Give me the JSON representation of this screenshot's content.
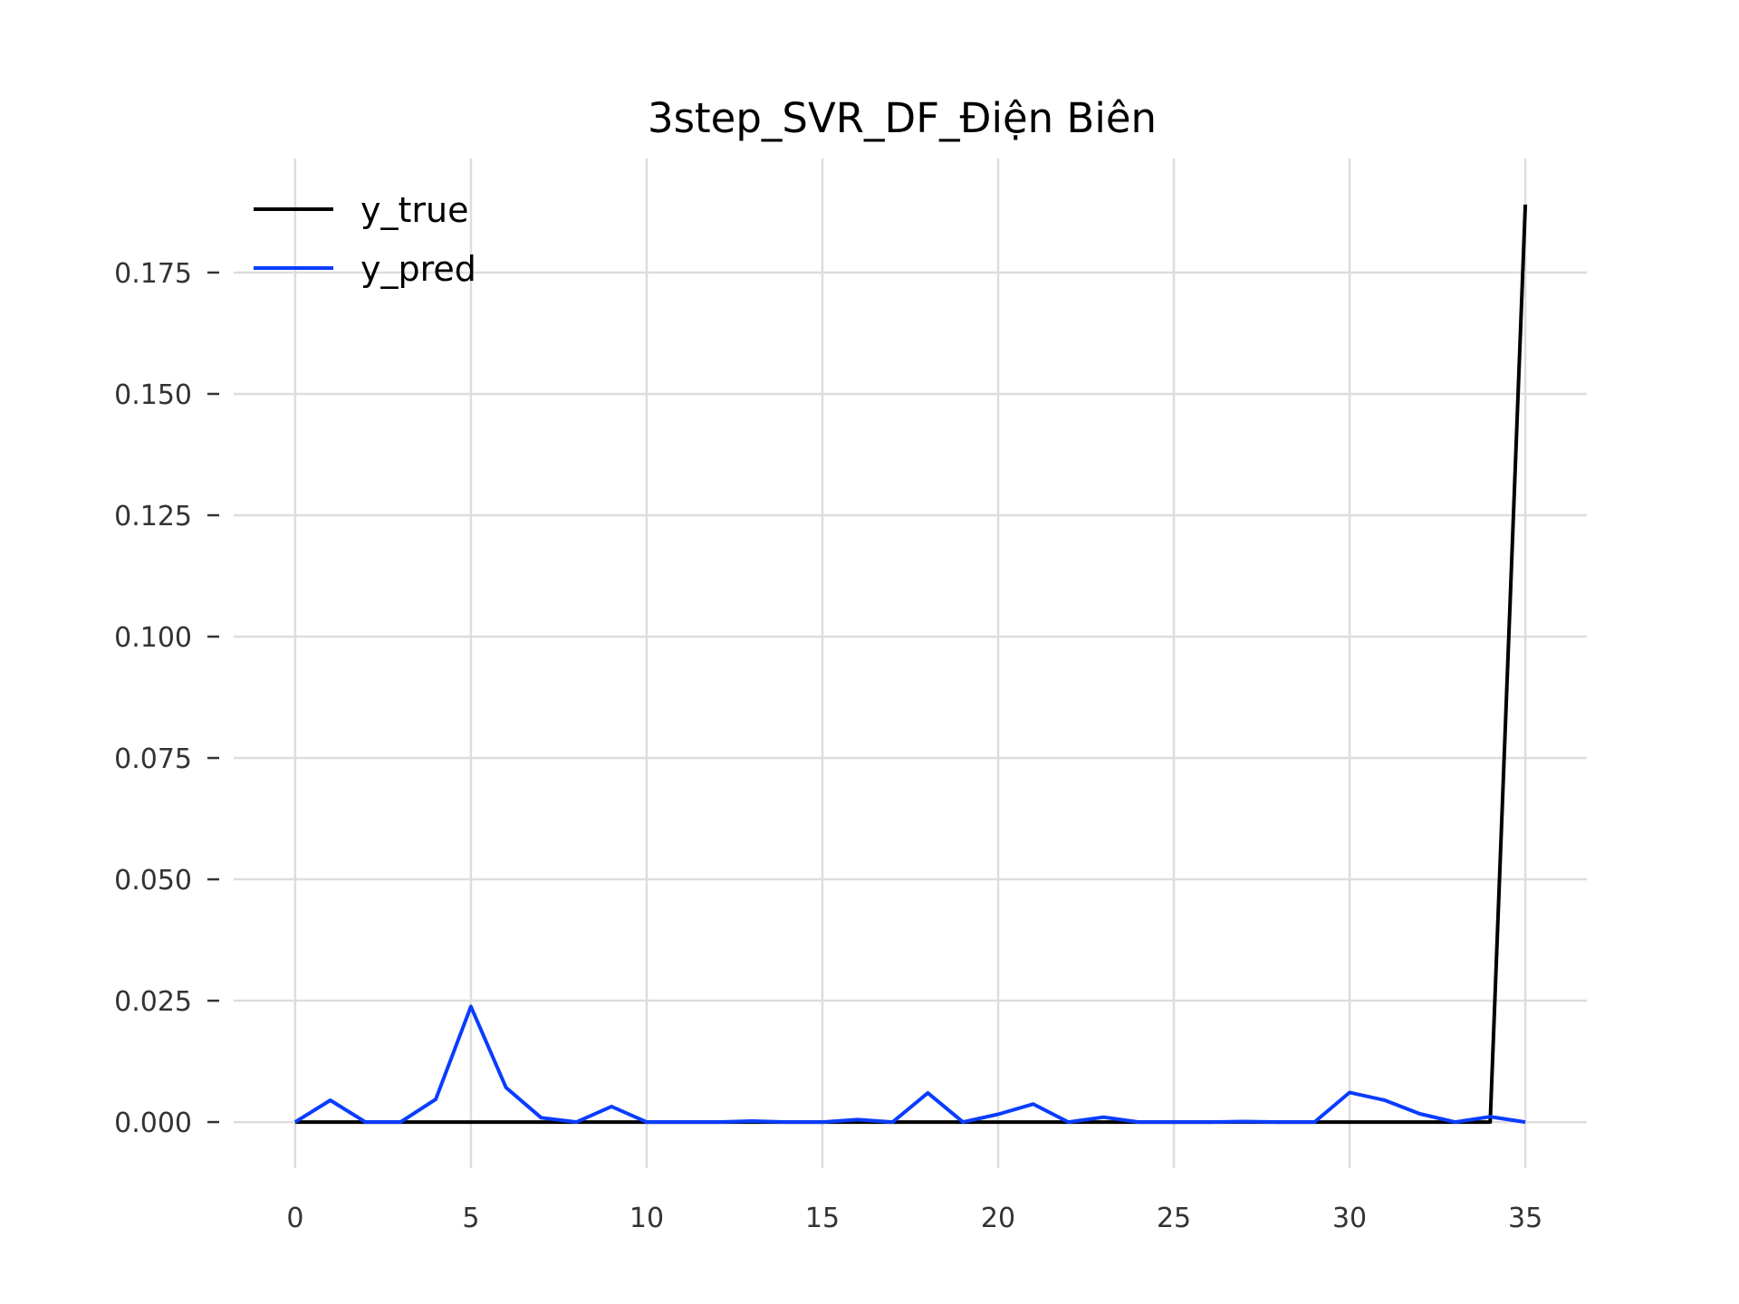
{
  "chart_data": {
    "type": "line",
    "title": "3step_SVR_DF_Điện Biên",
    "xlabel": "",
    "ylabel": "",
    "xlim": [
      -1.75,
      36.75
    ],
    "ylim": [
      -0.0095,
      0.1985
    ],
    "x_ticks": [
      0,
      5,
      10,
      15,
      20,
      25,
      30,
      35
    ],
    "x_tick_labels": [
      "0",
      "5",
      "10",
      "15",
      "20",
      "25",
      "30",
      "35"
    ],
    "y_ticks": [
      0.0,
      0.025,
      0.05,
      0.075,
      0.1,
      0.125,
      0.15,
      0.175
    ],
    "y_tick_labels": [
      "0.000",
      "0.025",
      "0.050",
      "0.075",
      "0.100",
      "0.125",
      "0.150",
      "0.175"
    ],
    "grid": true,
    "legend_position": "top-left",
    "x": [
      0,
      1,
      2,
      3,
      4,
      5,
      6,
      7,
      8,
      9,
      10,
      11,
      12,
      13,
      14,
      15,
      16,
      17,
      18,
      19,
      20,
      21,
      22,
      23,
      24,
      25,
      26,
      27,
      28,
      29,
      30,
      31,
      32,
      33,
      34,
      35
    ],
    "series": [
      {
        "name": "y_true",
        "color": "#000000",
        "values": [
          0,
          0,
          0,
          0,
          0,
          0,
          0,
          0,
          0,
          0,
          0,
          0,
          0,
          0,
          0,
          0,
          0,
          0,
          0,
          0,
          0,
          0,
          0,
          0,
          0,
          0,
          0,
          0,
          0,
          0,
          0,
          0,
          0,
          0,
          0,
          0.189
        ]
      },
      {
        "name": "y_pred",
        "color": "#0a3cff",
        "values": [
          0.0,
          0.0045,
          0.0,
          0.0,
          0.0047,
          0.0238,
          0.0071,
          0.0009,
          0.0,
          0.0032,
          0.0,
          0.0,
          0.0,
          0.0002,
          0.0,
          0.0,
          0.0005,
          0.0,
          0.006,
          0.0,
          0.0016,
          0.0037,
          0.0,
          0.001,
          0.0,
          0.0,
          0.0,
          0.0001,
          0.0,
          0.0,
          0.0061,
          0.0045,
          0.0017,
          0.0,
          0.0011,
          0.0
        ]
      }
    ]
  }
}
